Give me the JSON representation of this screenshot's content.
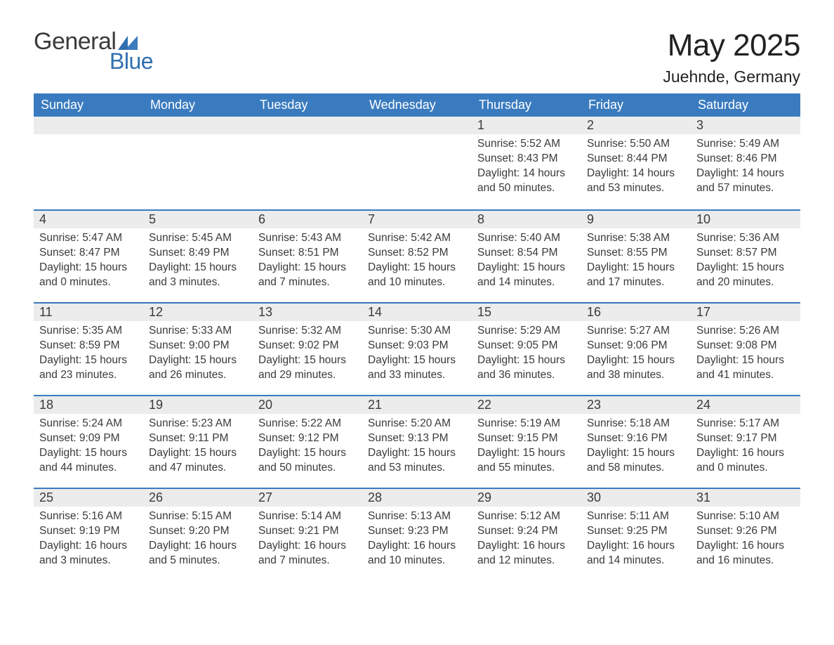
{
  "logo": {
    "general": "General",
    "blue": "Blue"
  },
  "title": "May 2025",
  "location": "Juehnde, Germany",
  "colors": {
    "header_bg": "#3a7bbf",
    "header_text": "#ffffff",
    "daynum_bg": "#ececec",
    "row_border": "#3a7bbf",
    "body_text": "#3a3a3a",
    "logo_blue": "#2f6fb0"
  },
  "weekdays": [
    "Sunday",
    "Monday",
    "Tuesday",
    "Wednesday",
    "Thursday",
    "Friday",
    "Saturday"
  ],
  "weeks": [
    [
      null,
      null,
      null,
      null,
      {
        "d": "1",
        "sunrise": "5:52 AM",
        "sunset": "8:43 PM",
        "dh": "14",
        "dm": "50"
      },
      {
        "d": "2",
        "sunrise": "5:50 AM",
        "sunset": "8:44 PM",
        "dh": "14",
        "dm": "53"
      },
      {
        "d": "3",
        "sunrise": "5:49 AM",
        "sunset": "8:46 PM",
        "dh": "14",
        "dm": "57"
      }
    ],
    [
      {
        "d": "4",
        "sunrise": "5:47 AM",
        "sunset": "8:47 PM",
        "dh": "15",
        "dm": "0"
      },
      {
        "d": "5",
        "sunrise": "5:45 AM",
        "sunset": "8:49 PM",
        "dh": "15",
        "dm": "3"
      },
      {
        "d": "6",
        "sunrise": "5:43 AM",
        "sunset": "8:51 PM",
        "dh": "15",
        "dm": "7"
      },
      {
        "d": "7",
        "sunrise": "5:42 AM",
        "sunset": "8:52 PM",
        "dh": "15",
        "dm": "10"
      },
      {
        "d": "8",
        "sunrise": "5:40 AM",
        "sunset": "8:54 PM",
        "dh": "15",
        "dm": "14"
      },
      {
        "d": "9",
        "sunrise": "5:38 AM",
        "sunset": "8:55 PM",
        "dh": "15",
        "dm": "17"
      },
      {
        "d": "10",
        "sunrise": "5:36 AM",
        "sunset": "8:57 PM",
        "dh": "15",
        "dm": "20"
      }
    ],
    [
      {
        "d": "11",
        "sunrise": "5:35 AM",
        "sunset": "8:59 PM",
        "dh": "15",
        "dm": "23"
      },
      {
        "d": "12",
        "sunrise": "5:33 AM",
        "sunset": "9:00 PM",
        "dh": "15",
        "dm": "26"
      },
      {
        "d": "13",
        "sunrise": "5:32 AM",
        "sunset": "9:02 PM",
        "dh": "15",
        "dm": "29"
      },
      {
        "d": "14",
        "sunrise": "5:30 AM",
        "sunset": "9:03 PM",
        "dh": "15",
        "dm": "33"
      },
      {
        "d": "15",
        "sunrise": "5:29 AM",
        "sunset": "9:05 PM",
        "dh": "15",
        "dm": "36"
      },
      {
        "d": "16",
        "sunrise": "5:27 AM",
        "sunset": "9:06 PM",
        "dh": "15",
        "dm": "38"
      },
      {
        "d": "17",
        "sunrise": "5:26 AM",
        "sunset": "9:08 PM",
        "dh": "15",
        "dm": "41"
      }
    ],
    [
      {
        "d": "18",
        "sunrise": "5:24 AM",
        "sunset": "9:09 PM",
        "dh": "15",
        "dm": "44"
      },
      {
        "d": "19",
        "sunrise": "5:23 AM",
        "sunset": "9:11 PM",
        "dh": "15",
        "dm": "47"
      },
      {
        "d": "20",
        "sunrise": "5:22 AM",
        "sunset": "9:12 PM",
        "dh": "15",
        "dm": "50"
      },
      {
        "d": "21",
        "sunrise": "5:20 AM",
        "sunset": "9:13 PM",
        "dh": "15",
        "dm": "53"
      },
      {
        "d": "22",
        "sunrise": "5:19 AM",
        "sunset": "9:15 PM",
        "dh": "15",
        "dm": "55"
      },
      {
        "d": "23",
        "sunrise": "5:18 AM",
        "sunset": "9:16 PM",
        "dh": "15",
        "dm": "58"
      },
      {
        "d": "24",
        "sunrise": "5:17 AM",
        "sunset": "9:17 PM",
        "dh": "16",
        "dm": "0"
      }
    ],
    [
      {
        "d": "25",
        "sunrise": "5:16 AM",
        "sunset": "9:19 PM",
        "dh": "16",
        "dm": "3"
      },
      {
        "d": "26",
        "sunrise": "5:15 AM",
        "sunset": "9:20 PM",
        "dh": "16",
        "dm": "5"
      },
      {
        "d": "27",
        "sunrise": "5:14 AM",
        "sunset": "9:21 PM",
        "dh": "16",
        "dm": "7"
      },
      {
        "d": "28",
        "sunrise": "5:13 AM",
        "sunset": "9:23 PM",
        "dh": "16",
        "dm": "10"
      },
      {
        "d": "29",
        "sunrise": "5:12 AM",
        "sunset": "9:24 PM",
        "dh": "16",
        "dm": "12"
      },
      {
        "d": "30",
        "sunrise": "5:11 AM",
        "sunset": "9:25 PM",
        "dh": "16",
        "dm": "14"
      },
      {
        "d": "31",
        "sunrise": "5:10 AM",
        "sunset": "9:26 PM",
        "dh": "16",
        "dm": "16"
      }
    ]
  ],
  "labels": {
    "sunrise": "Sunrise:",
    "sunset": "Sunset:",
    "daylight_prefix": "Daylight:",
    "hours_word": "hours",
    "and_word": "and",
    "minutes_word": "minutes."
  }
}
